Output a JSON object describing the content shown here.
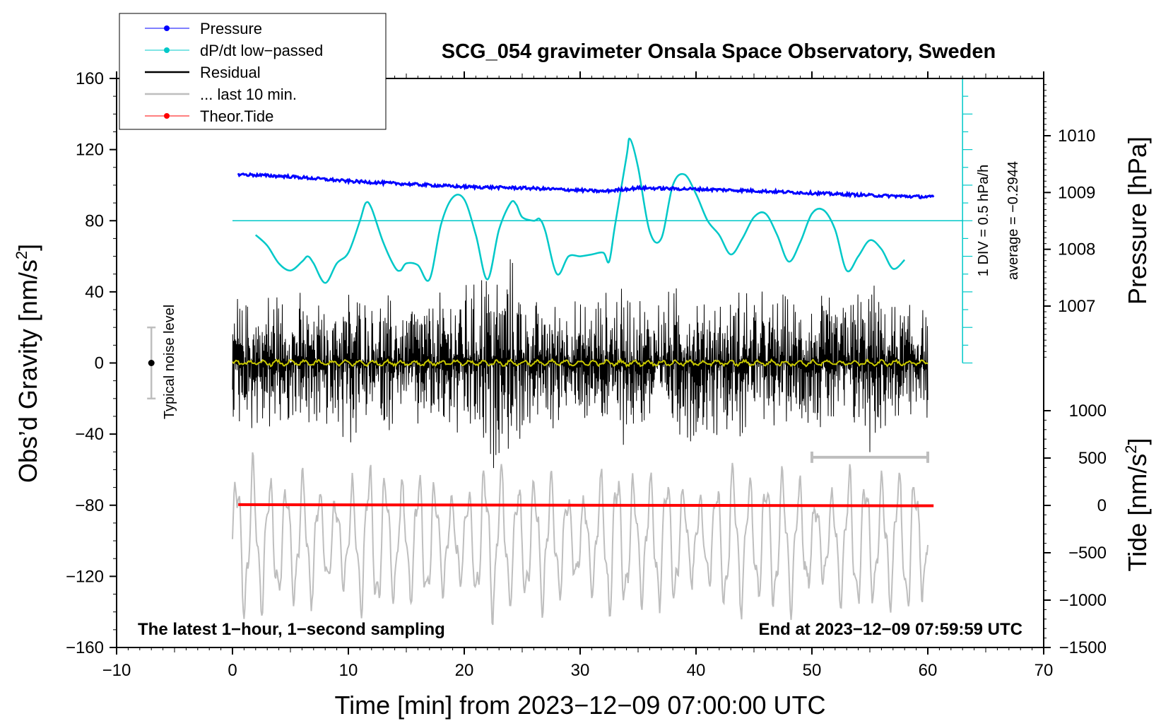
{
  "chart_data": {
    "type": "line",
    "title": "SCG_054 gravimeter Onsala Space Observatory, Sweden",
    "xlabel": "Time [min] from 2023−12−09 07:00:00 UTC",
    "ylabel_left": "Obs’d Gravity [nm/s²]",
    "ylabel_left_main": "Obs’d Gravity [nm/s",
    "ylabel_left_sup": "2",
    "ylabel_left_tail": "]",
    "ylabel_pressure": "Pressure [hPa]",
    "ylabel_tide_main": "Tide [nm/s",
    "ylabel_tide_sup": "2",
    "ylabel_tide_tail": "]",
    "xlim": [
      -10,
      70
    ],
    "ylim": [
      -160,
      160
    ],
    "pressure_lim": [
      1006.0,
      1011.0
    ],
    "tide_lim": [
      -1500,
      1500
    ],
    "x_ticks": [
      "−10",
      "0",
      "10",
      "20",
      "30",
      "40",
      "50",
      "60",
      "70"
    ],
    "x_tick_values": [
      -10,
      0,
      10,
      20,
      30,
      40,
      50,
      60,
      70
    ],
    "y_ticks": [
      "160",
      "120",
      "80",
      "40",
      "0",
      "−40",
      "−80",
      "−120",
      "−160"
    ],
    "y_tick_values": [
      160,
      120,
      80,
      40,
      0,
      -40,
      -80,
      -120,
      -160
    ],
    "pressure_ticks": [
      "1010",
      "1009",
      "1008",
      "1007"
    ],
    "pressure_tick_values": [
      1010,
      1009,
      1008,
      1007
    ],
    "tide_ticks": [
      "1000",
      "500",
      "0",
      "−500",
      "−1000",
      "−1500"
    ],
    "tide_tick_values": [
      1000,
      500,
      0,
      -500,
      -1000,
      -1500
    ],
    "legend": [
      {
        "label": "Pressure",
        "color": "#0000ff",
        "marker": true
      },
      {
        "label": "dP/dt low−passed",
        "color": "#00c8c8",
        "marker": true
      },
      {
        "label": "Residual",
        "color": "#000000",
        "marker": false
      },
      {
        "label": "... last 10 min.",
        "color": "#bebebe",
        "marker": false
      },
      {
        "label": "Theor.Tide",
        "color": "#ff0000",
        "marker": true
      }
    ],
    "annotations": {
      "bottom_left": "The latest 1−hour, 1−second sampling",
      "bottom_right": "End at 2023−12−09 07:59:59 UTC",
      "noise_label": "Typical noise level",
      "dpdt_scale": "1 DIV = 0.5 hPa/h",
      "dpdt_average": "average = −0.2944"
    },
    "noise_bar": {
      "x": -7,
      "center": 0,
      "half_range": 20
    },
    "last10_bar": {
      "x": [
        50,
        60
      ],
      "y": -53
    },
    "dpdt_reference_y": 80,
    "dpdt_axis": {
      "x": 63,
      "y_min": 0,
      "y_max": 160
    },
    "series": [
      {
        "name": "Pressure",
        "unit": "hPa",
        "color": "#0000ff",
        "x": [
          0.5,
          5,
          10,
          15,
          20,
          25,
          30,
          32,
          35,
          40,
          45,
          50,
          55,
          60.5
        ],
        "values": [
          1009.32,
          1009.28,
          1009.2,
          1009.15,
          1009.1,
          1009.08,
          1009.04,
          1009.02,
          1009.08,
          1009.06,
          1009.03,
          1008.99,
          1008.95,
          1008.92
        ]
      },
      {
        "name": "dP/dt low−passed",
        "unit": "nm/s² (plot units)",
        "color": "#00c8c8",
        "x": [
          2,
          3,
          4,
          5,
          6,
          6.5,
          7,
          8,
          9,
          10,
          11,
          11.5,
          12,
          13,
          14,
          14.5,
          15,
          16,
          17,
          18,
          19,
          20,
          21,
          22,
          23,
          24,
          24.5,
          25,
          26,
          26.5,
          27,
          28,
          29,
          30,
          31,
          32,
          32.5,
          33,
          34,
          34.3,
          35,
          36,
          37,
          38,
          39,
          40,
          41,
          42,
          43,
          44,
          45,
          46,
          47,
          48,
          49,
          50,
          51,
          52,
          53,
          54,
          55,
          56,
          57,
          58
        ],
        "values": [
          72,
          66,
          56,
          52,
          57,
          60,
          56,
          45,
          56,
          62,
          80,
          90,
          87,
          68,
          54,
          52,
          56,
          55,
          47,
          78,
          93,
          92,
          72,
          47,
          75,
          90,
          89,
          82,
          80,
          81,
          74,
          50,
          60,
          60,
          61,
          62,
          57,
          77,
          116,
          126,
          110,
          74,
          70,
          100,
          106,
          95,
          80,
          72,
          61,
          70,
          82,
          84,
          72,
          57,
          68,
          84,
          86,
          75,
          52,
          60,
          69,
          64,
          53,
          58
        ]
      },
      {
        "name": "Residual",
        "unit": "nm/s²",
        "color": "#000000",
        "x_range": [
          0,
          60
        ],
        "envelope": [
          40,
          40,
          38,
          45,
          45,
          40,
          42,
          42,
          40,
          47,
          50,
          45,
          42,
          40,
          38,
          40,
          42,
          38,
          42,
          45,
          48,
          45,
          68,
          60,
          65,
          48,
          40,
          38,
          42,
          40,
          38,
          40,
          42,
          45,
          48,
          42,
          40,
          40,
          42,
          48,
          50,
          45,
          42,
          40,
          45,
          48,
          40,
          38,
          42,
          40,
          38,
          40,
          38,
          40,
          45,
          52,
          42,
          38,
          36,
          35,
          35
        ]
      },
      {
        "name": "... last 10 min.",
        "unit": "nm/s²",
        "color": "#bebebe",
        "x_range": [
          0,
          60
        ],
        "center": -100,
        "amplitude": [
          25,
          50
        ]
      },
      {
        "name": "Theor.Tide",
        "unit": "nm/s²",
        "color": "#ff0000",
        "x": [
          0.5,
          60.5
        ],
        "values": [
          8,
          -4
        ]
      },
      {
        "name": "Residual smoothed",
        "unit": "nm/s²",
        "color": "#c8c800",
        "x_range": [
          0,
          60
        ],
        "values_approx": 0
      }
    ]
  }
}
